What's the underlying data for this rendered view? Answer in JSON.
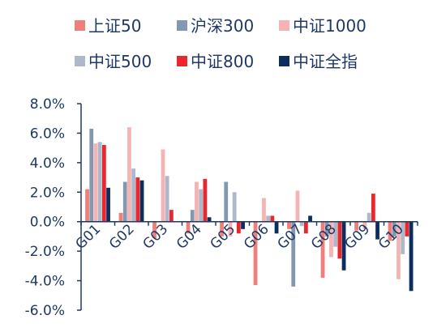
{
  "chart_data": {
    "type": "bar",
    "categories": [
      "G01",
      "G02",
      "G03",
      "G04",
      "G05",
      "G06",
      "G07",
      "G08",
      "G09",
      "G10"
    ],
    "series": [
      {
        "name": "上证50",
        "color": "#ee7f7a",
        "values": [
          2.2,
          0.6,
          -1.1,
          -0.8,
          -1.0,
          -4.3,
          -0.5,
          -3.8,
          -0.6,
          -1.3
        ]
      },
      {
        "name": "沪深300",
        "color": "#8497b0",
        "values": [
          6.3,
          2.7,
          0.0,
          0.8,
          2.7,
          0.0,
          -4.4,
          -1.0,
          0.0,
          -1.0
        ]
      },
      {
        "name": "中证1000",
        "color": "#f5b4b3",
        "values": [
          5.3,
          6.4,
          4.9,
          2.7,
          -1.0,
          1.6,
          2.1,
          -2.4,
          -0.5,
          -3.9
        ]
      },
      {
        "name": "中证500",
        "color": "#adb9ca",
        "values": [
          5.4,
          3.6,
          3.1,
          2.2,
          2.0,
          0.4,
          -0.3,
          -1.7,
          0.6,
          -2.2
        ]
      },
      {
        "name": "中证800",
        "color": "#e8282c",
        "values": [
          5.2,
          3.0,
          0.8,
          2.9,
          -0.8,
          0.4,
          -0.8,
          -2.5,
          1.9,
          -1.0
        ]
      },
      {
        "name": "中证全指",
        "color": "#0d2d5e",
        "values": [
          2.3,
          2.8,
          0.0,
          0.3,
          -0.5,
          -0.8,
          0.4,
          -3.3,
          -1.2,
          -4.7
        ]
      }
    ],
    "yticks": [
      "8.0%",
      "6.0%",
      "4.0%",
      "2.0%",
      "0.0%",
      "-2.0%",
      "-4.0%",
      "-6.0%"
    ],
    "ylim": [
      -6,
      8
    ],
    "legend_position": "top",
    "grid": false
  }
}
